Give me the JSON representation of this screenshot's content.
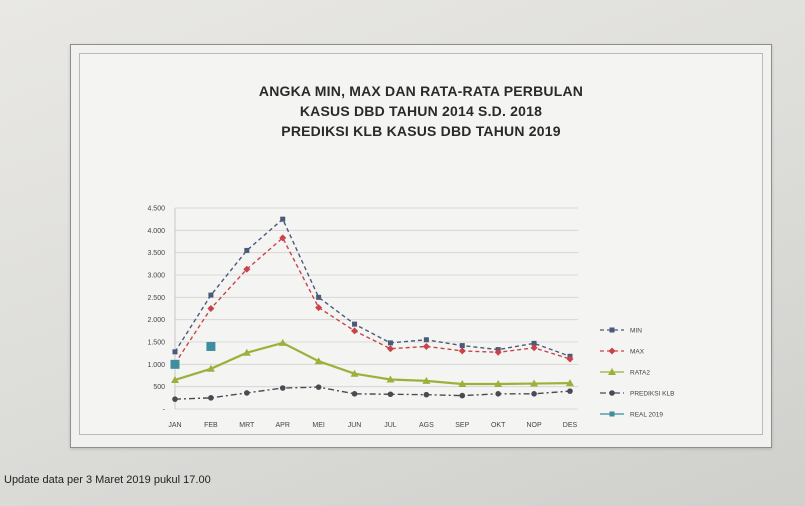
{
  "footer": "Update data per  3 Maret 2019 pukul 17.00",
  "chart_data": {
    "type": "line",
    "title_lines": [
      "ANGKA MIN, MAX DAN RATA-RATA PERBULAN",
      "KASUS DBD TAHUN 2014 S.D. 2018",
      "PREDIKSI KLB KASUS DBD TAHUN 2019"
    ],
    "categories": [
      "JAN",
      "FEB",
      "MRT",
      "APR",
      "MEI",
      "JUN",
      "JUL",
      "AGS",
      "SEP",
      "OKT",
      "NOP",
      "DES"
    ],
    "ylim": [
      0,
      4500
    ],
    "yticks": [
      0,
      500,
      1000,
      1500,
      2000,
      2500,
      3000,
      3500,
      4000,
      4500
    ],
    "ytick_labels": [
      "-",
      "500",
      "1.000",
      "1.500",
      "2.000",
      "2.500",
      "3.000",
      "3.500",
      "4.000",
      "4.500"
    ],
    "grid": "horizontal",
    "legend_position": "right",
    "series": [
      {
        "name": "MIN",
        "color": "#4a5a78",
        "dash": "4,3",
        "marker": "square",
        "values": [
          1280,
          2550,
          3550,
          4250,
          2500,
          1900,
          1480,
          1550,
          1420,
          1330,
          1470,
          1180
        ]
      },
      {
        "name": "MAX",
        "color": "#c9444a",
        "dash": "4,3",
        "marker": "diamond",
        "values": [
          1020,
          2250,
          3130,
          3830,
          2270,
          1750,
          1350,
          1400,
          1300,
          1270,
          1370,
          1120
        ]
      },
      {
        "name": "RATA2",
        "color": "#9ab23a",
        "dash": "",
        "marker": "triangle",
        "values": [
          650,
          900,
          1260,
          1480,
          1070,
          790,
          660,
          630,
          560,
          560,
          570,
          580
        ]
      },
      {
        "name": "PREDIKSI KLB",
        "color": "#4a4a52",
        "dash": "6,3,2,3",
        "marker": "circle",
        "values": [
          220,
          250,
          360,
          470,
          490,
          340,
          330,
          320,
          300,
          340,
          340,
          400
        ]
      },
      {
        "name": "REAL 2019",
        "color": "#3f8ea0",
        "dash": "",
        "marker": "bigsquare",
        "values": [
          1000,
          1400,
          null,
          null,
          null,
          null,
          null,
          null,
          null,
          null,
          null,
          null
        ]
      }
    ]
  }
}
